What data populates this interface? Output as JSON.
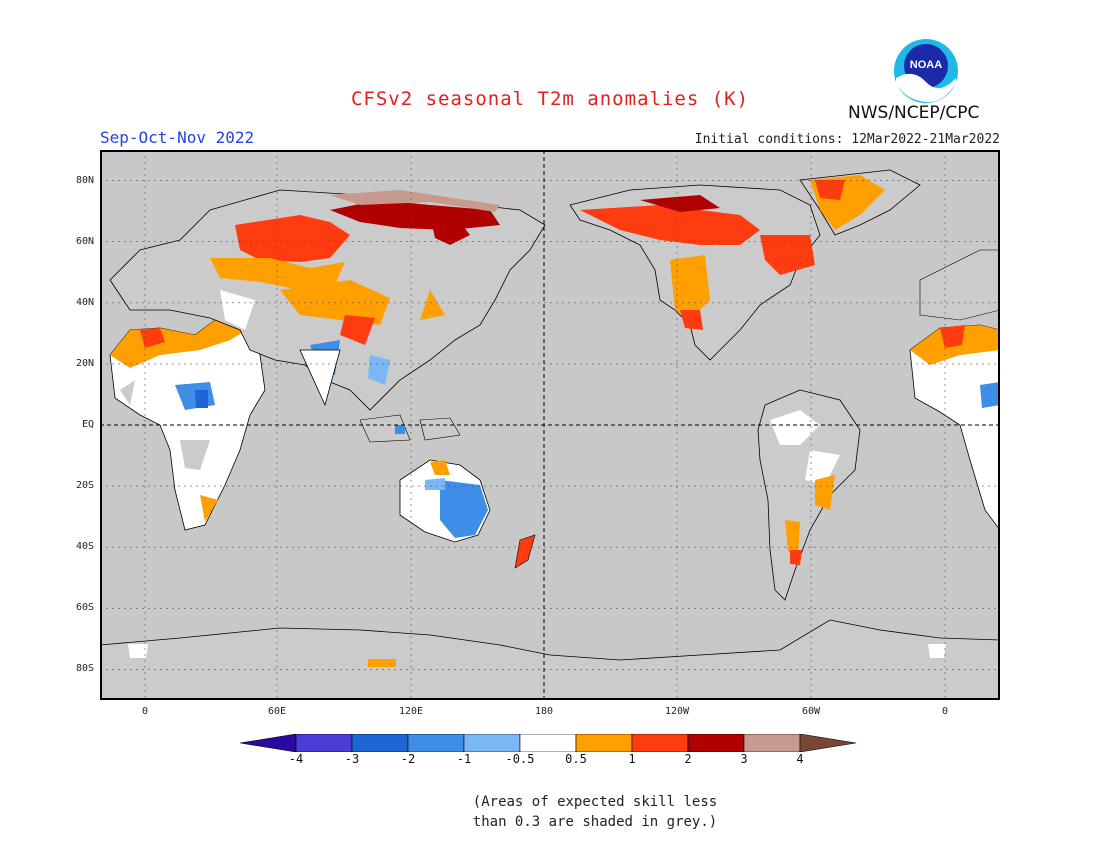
{
  "header": {
    "title": "CFSv2 seasonal T2m anomalies (K)",
    "season": "Sep-Oct-Nov 2022",
    "initial_conditions": "Initial conditions: 12Mar2022-21Mar2022",
    "agency": "NWS/NCEP/CPC",
    "logo_text": "NOAA"
  },
  "map": {
    "projection": "equirectangular",
    "lon_range": [
      -20,
      340
    ],
    "lat_range": [
      -90,
      90
    ],
    "y_ticks": [
      "80N",
      "60N",
      "40N",
      "20N",
      "EQ",
      "20S",
      "40S",
      "60S",
      "80S"
    ],
    "x_ticks": [
      "0",
      "60E",
      "120E",
      "180",
      "120W",
      "60W",
      "0"
    ],
    "land_color": "#cbcbcb",
    "ocean_color": "#c8c8c8",
    "skill_mask_color": "#c8c8c8"
  },
  "colorbar": {
    "labels": [
      "-4",
      "-3",
      "-2",
      "-1",
      "-0.5",
      "0.5",
      "1",
      "2",
      "3",
      "4"
    ],
    "colors": [
      "#2a0a9e",
      "#4a3dd6",
      "#1e66d6",
      "#3e8ee8",
      "#7ab8f5",
      "#ffffff",
      "#ff9f00",
      "#ff3b10",
      "#b00000",
      "#c69a8c",
      "#7a4636"
    ]
  },
  "note": {
    "line1": "(Areas of expected skill less",
    "line2": "than 0.3 are shaded in grey.)"
  }
}
